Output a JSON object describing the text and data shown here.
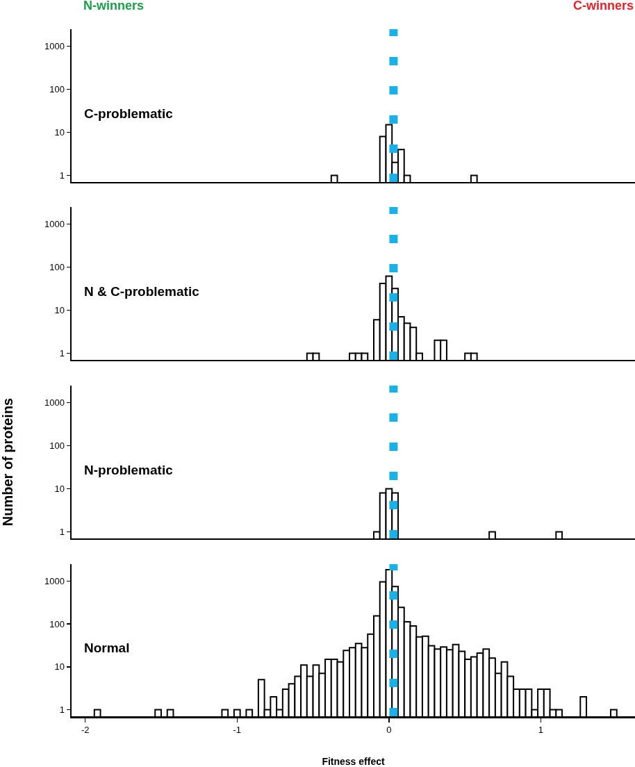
{
  "chart_data": [
    {
      "type": "histogram",
      "title": "C-problematic",
      "annotations": [
        "N-winners",
        "C-winners"
      ],
      "color": "#ffffff",
      "log": true,
      "xlim": [
        -2.09,
        1.62
      ],
      "xticks": [
        -2,
        -1,
        0,
        1
      ],
      "ylim": [
        0.7,
        2500
      ],
      "yticks": [
        1,
        10,
        100,
        1000
      ],
      "tick_labels": "y",
      "bins": [
        -0.38,
        -0.34,
        -0.3,
        -0.26,
        -0.22,
        -0.18,
        -0.14,
        -0.1,
        -0.06,
        -0.02,
        0.02,
        0.06,
        0.1,
        0.14,
        0.18,
        0.22,
        0.26,
        0.3,
        0.34,
        0.38,
        0.42,
        0.46,
        0.5,
        0.54,
        0.58
      ],
      "values": [
        1,
        null,
        null,
        null,
        null,
        null,
        null,
        null,
        8,
        15,
        2,
        4,
        1,
        null,
        null,
        null,
        null,
        null,
        null,
        null,
        null,
        null,
        null,
        1
      ],
      "ref_lines": [
        {
          "axis": "x",
          "value": 0.03,
          "color": "#1ab0e8",
          "line_style": "dotted"
        }
      ]
    },
    {
      "type": "histogram",
      "title": "N & C-problematic",
      "color": "#ffffff",
      "log": true,
      "xlim": [
        -2.09,
        1.62
      ],
      "xticks": [
        -2,
        -1,
        0,
        1
      ],
      "ylim": [
        0.7,
        2500
      ],
      "yticks": [
        1,
        10,
        100,
        1000
      ],
      "tick_labels": "y",
      "bins": [
        -0.54,
        -0.5,
        -0.46,
        -0.42,
        -0.38,
        -0.34,
        -0.3,
        -0.26,
        -0.22,
        -0.18,
        -0.14,
        -0.1,
        -0.06,
        -0.02,
        0.02,
        0.06,
        0.1,
        0.14,
        0.18,
        0.22,
        0.26,
        0.3,
        0.34,
        0.38,
        0.42,
        0.46,
        0.5,
        0.54,
        0.58
      ],
      "values": [
        1,
        1,
        null,
        null,
        null,
        null,
        null,
        1,
        1,
        1,
        null,
        6,
        42,
        62,
        32,
        7,
        5,
        4,
        1,
        null,
        null,
        2,
        2,
        null,
        null,
        null,
        1,
        1
      ],
      "ref_lines": [
        {
          "axis": "x",
          "value": 0.03,
          "color": "#1ab0e8",
          "line_style": "dotted"
        }
      ]
    },
    {
      "type": "histogram",
      "title": "N-problematic",
      "ylabel": "Number of proteins",
      "color": "#ffffff",
      "log": true,
      "xlim": [
        -2.09,
        1.62
      ],
      "xticks": [
        -2,
        -1,
        0,
        1
      ],
      "ylim": [
        0.7,
        2500
      ],
      "yticks": [
        1,
        10,
        100,
        1000
      ],
      "tick_labels": "y",
      "bins": [
        -0.1,
        -0.06,
        -0.02,
        0.02,
        0.06,
        0.1,
        0.14,
        0.18,
        0.22,
        0.26,
        0.3,
        0.34,
        0.38,
        0.42,
        0.46,
        0.5,
        0.54,
        0.58,
        0.62,
        0.66,
        0.7,
        0.74,
        0.78,
        0.82,
        0.86,
        0.9,
        0.94,
        0.98,
        1.02,
        1.06,
        1.1,
        1.14
      ],
      "values": [
        1,
        8,
        10,
        8,
        null,
        null,
        null,
        null,
        null,
        null,
        null,
        null,
        null,
        null,
        null,
        null,
        null,
        null,
        null,
        1,
        null,
        null,
        null,
        null,
        null,
        null,
        null,
        null,
        null,
        null,
        1
      ],
      "ref_lines": [
        {
          "axis": "x",
          "value": 0.03,
          "color": "#1ab0e8",
          "line_style": "dotted"
        }
      ]
    },
    {
      "type": "histogram",
      "title": "Normal",
      "xlabel": "Fitness effect",
      "color": "#ffffff",
      "log": true,
      "xlim": [
        -2.09,
        1.62
      ],
      "xticks": [
        -2,
        -1,
        0,
        1
      ],
      "ylim": [
        0.7,
        2500
      ],
      "yticks": [
        1,
        10,
        100,
        1000
      ],
      "bins": [
        -1.94,
        -1.9,
        -1.86,
        -1.82,
        -1.78,
        -1.74,
        -1.7,
        -1.66,
        -1.62,
        -1.58,
        -1.54,
        -1.5,
        -1.46,
        -1.42,
        -1.38,
        -1.34,
        -1.3,
        -1.26,
        -1.22,
        -1.18,
        -1.14,
        -1.1,
        -1.06,
        -1.02,
        -0.98,
        -0.94,
        -0.9,
        -0.86,
        -0.82,
        -0.78,
        -0.74,
        -0.7,
        -0.66,
        -0.62,
        -0.58,
        -0.54,
        -0.5,
        -0.46,
        -0.42,
        -0.38,
        -0.34,
        -0.3,
        -0.26,
        -0.22,
        -0.18,
        -0.14,
        -0.1,
        -0.06,
        -0.02,
        0.02,
        0.06,
        0.1,
        0.14,
        0.18,
        0.22,
        0.26,
        0.3,
        0.34,
        0.38,
        0.42,
        0.46,
        0.5,
        0.54,
        0.58,
        0.62,
        0.66,
        0.7,
        0.74,
        0.78,
        0.82,
        0.86,
        0.9,
        0.94,
        0.98,
        1.02,
        1.06,
        1.1,
        1.14,
        1.18,
        1.22,
        1.26,
        1.3,
        1.34,
        1.38,
        1.42,
        1.46,
        1.5
      ],
      "values": [
        1,
        null,
        null,
        null,
        null,
        null,
        null,
        null,
        null,
        null,
        1,
        null,
        1,
        null,
        null,
        null,
        null,
        null,
        null,
        null,
        null,
        1,
        null,
        1,
        null,
        1,
        null,
        5,
        1,
        2,
        1,
        3,
        4,
        6,
        11,
        6,
        11,
        7,
        15,
        15,
        13,
        24,
        28,
        35,
        28,
        58,
        154,
        960,
        1860,
        750,
        245,
        113,
        90,
        50,
        52,
        31,
        26,
        29,
        25,
        33,
        23,
        15,
        17,
        21,
        26,
        16,
        7,
        13,
        6,
        3,
        3,
        3,
        1,
        3,
        3,
        1,
        1,
        null,
        null,
        null,
        2,
        null,
        null,
        null,
        null,
        1
      ],
      "ref_lines": [
        {
          "axis": "x",
          "value": 0.03,
          "color": "#1ab0e8",
          "line_style": "dotted"
        }
      ]
    }
  ]
}
